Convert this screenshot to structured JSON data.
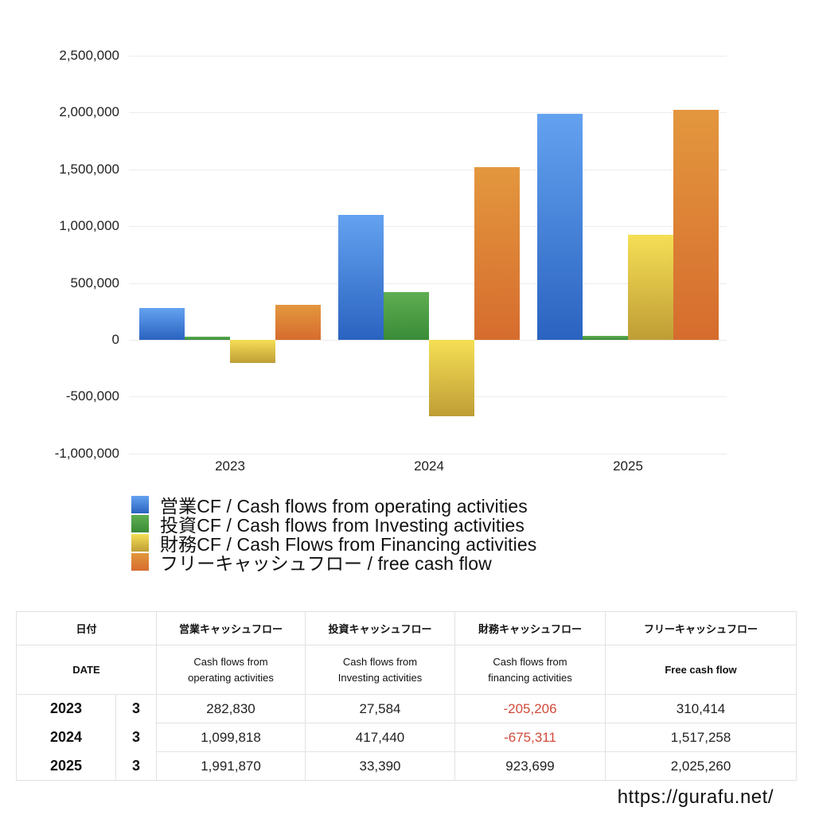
{
  "chart_data": {
    "type": "bar",
    "title": "",
    "xlabel": "",
    "ylabel": "",
    "categories": [
      "2023",
      "2024",
      "2025"
    ],
    "series": [
      {
        "name": "営業CF / Cash flows from operating activities",
        "color": "#4a86dc",
        "values": [
          282830,
          1099818,
          1991870
        ]
      },
      {
        "name": "投資CF / Cash flows from Investing activities",
        "color": "#4c9c44",
        "values": [
          27584,
          417440,
          33390
        ]
      },
      {
        "name": "財務CF / Cash Flows from Financing activities",
        "color": "#e3c646",
        "values": [
          -205206,
          -675311,
          923699
        ]
      },
      {
        "name": "フリーキャッシュフロー / free cash flow",
        "color": "#dd8035",
        "values": [
          310414,
          1517258,
          2025260
        ]
      }
    ],
    "yticks": [
      "2,500,000",
      "2,000,000",
      "1,500,000",
      "1,000,000",
      "500,000",
      "0",
      "-500,000",
      "-1,000,000"
    ],
    "ylim": [
      -1000000,
      2500000
    ],
    "grid": true,
    "legend_position": "bottom"
  },
  "legend": [
    "営業CF / Cash flows from operating activities",
    "投資CF / Cash flows from Investing activities",
    "財務CF / Cash Flows from Financing activities",
    "フリーキャッシュフロー / free cash flow"
  ],
  "table": {
    "header_jp": [
      "日付",
      "営業キャッシュフロー",
      "投資キャッシュフロー",
      "財務キャッシュフロー",
      "フリーキャッシュフロー"
    ],
    "header_en": [
      "DATE",
      "Cash flows from\noperating activities",
      "Cash flows from\nInvesting activities",
      "Cash flows from\nfinancing activities",
      "Free cash flow"
    ],
    "rows": [
      {
        "year": "2023",
        "month": "3",
        "operating": "282,830",
        "investing": "27,584",
        "financing": "-205,206",
        "free": "310,414"
      },
      {
        "year": "2024",
        "month": "3",
        "operating": "1,099,818",
        "investing": "417,440",
        "financing": "-675,311",
        "free": "1,517,258"
      },
      {
        "year": "2025",
        "month": "3",
        "operating": "1,991,870",
        "investing": "33,390",
        "financing": "923,699",
        "free": "2,025,260"
      }
    ]
  },
  "footer": {
    "url": "https://gurafu.net/"
  }
}
